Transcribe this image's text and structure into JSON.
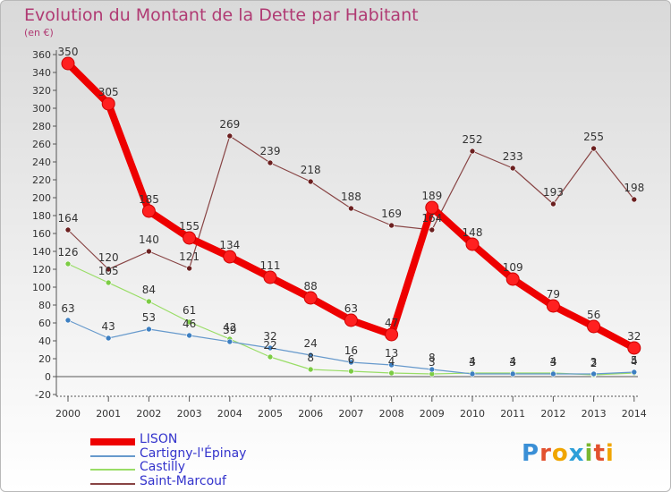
{
  "title": "Evolution du Montant de la Dette par Habitant",
  "subtitle": "(en €)",
  "logo": {
    "text": "Proxiti",
    "letter_colors": [
      "#3a8fd6",
      "#e2502e",
      "#f0a500",
      "#2e9fd8",
      "#7ab72e",
      "#e2502e",
      "#f0a500"
    ]
  },
  "chart_data": {
    "type": "line",
    "x": [
      2000,
      2001,
      2002,
      2003,
      2004,
      2005,
      2006,
      2007,
      2008,
      2009,
      2010,
      2011,
      2012,
      2013,
      2014
    ],
    "ylim": [
      -20,
      360
    ],
    "y_ticks": [
      -20,
      0,
      20,
      40,
      60,
      80,
      100,
      120,
      140,
      160,
      180,
      200,
      220,
      240,
      260,
      280,
      300,
      320,
      340,
      360
    ],
    "grid": false,
    "legend_position": "bottom-left",
    "series": [
      {
        "name": "LISON",
        "color": "#ee0000",
        "marker_color": "#ff2020",
        "values": [
          350,
          305,
          185,
          155,
          134,
          111,
          88,
          63,
          47,
          189,
          148,
          109,
          79,
          56,
          32
        ]
      },
      {
        "name": "Cartigny-l'Épinay",
        "color": "#6699cc",
        "marker_color": "#3d7fc1",
        "values": [
          63,
          43,
          53,
          46,
          39,
          32,
          24,
          16,
          13,
          8,
          3,
          3,
          3,
          3,
          5
        ]
      },
      {
        "name": "Castilly",
        "color": "#99dd66",
        "marker_color": "#7ccc44",
        "values": [
          126,
          105,
          84,
          61,
          42,
          22,
          8,
          6,
          4,
          3,
          4,
          4,
          4,
          2,
          4
        ]
      },
      {
        "name": "Saint-Marcouf",
        "color": "#884444",
        "marker_color": "#6b1f1f",
        "values": [
          164,
          120,
          140,
          121,
          269,
          239,
          218,
          188,
          169,
          164,
          252,
          233,
          193,
          255,
          198
        ]
      }
    ]
  }
}
